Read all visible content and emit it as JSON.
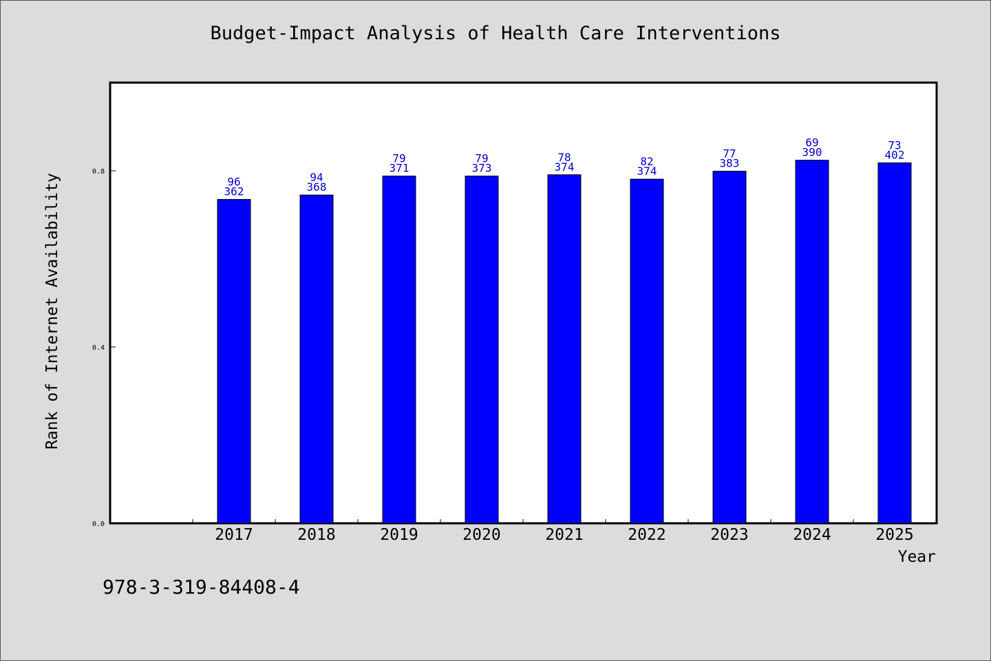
{
  "title": "Budget-Impact Analysis of Health Care Interventions",
  "isbn": "978-3-319-84408-4",
  "colors": {
    "bar": "#0000ff",
    "label": "#0000cc",
    "background": "#dcdcdc",
    "plot_background": "#ffffff"
  },
  "chart_data": {
    "type": "bar",
    "title": "Budget-Impact Analysis of Health Care Interventions",
    "xlabel": "Year",
    "ylabel": "Rank of Internet Availability",
    "categories": [
      "2017",
      "2018",
      "2019",
      "2020",
      "2021",
      "2022",
      "2023",
      "2024",
      "2025"
    ],
    "values": [
      0.735,
      0.745,
      0.788,
      0.788,
      0.791,
      0.781,
      0.799,
      0.824,
      0.818
    ],
    "bar_labels_top": [
      "96",
      "94",
      "79",
      "79",
      "78",
      "82",
      "77",
      "69",
      "73"
    ],
    "bar_labels_bottom": [
      "362",
      "368",
      "371",
      "373",
      "374",
      "374",
      "383",
      "390",
      "402"
    ],
    "yticks": [
      "0.0",
      "0.4",
      "0.8"
    ],
    "ylim": [
      0,
      1.0
    ],
    "grid": false,
    "legend": "none"
  }
}
